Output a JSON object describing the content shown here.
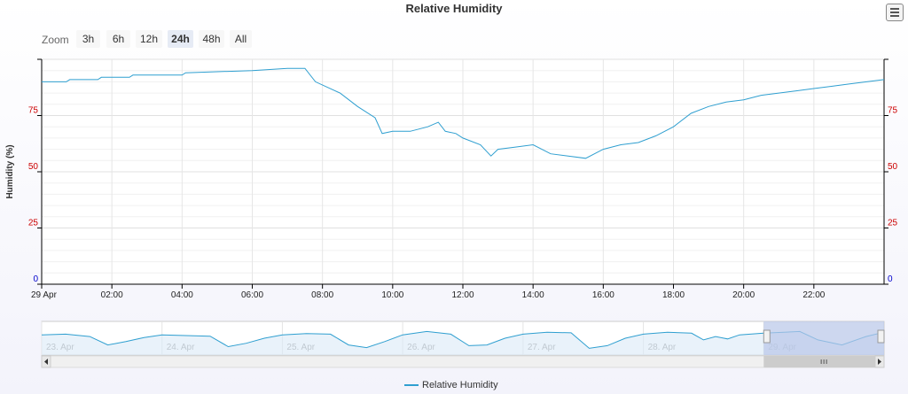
{
  "title": "Relative Humidity",
  "menu": {
    "icon": "hamburger-menu-icon"
  },
  "zoom": {
    "label": "Zoom",
    "buttons": [
      "3h",
      "6h",
      "12h",
      "24h",
      "48h",
      "All"
    ],
    "active": "24h"
  },
  "colors": {
    "series": "#2f9fd0",
    "navigator_fill": "#b8c6e8",
    "tick_red": "#cc0000",
    "tick_zero": "#0000cc"
  },
  "chart_data": {
    "type": "line",
    "title": "Relative Humidity",
    "ylabel": "Humidity (%)",
    "xlabel": "",
    "ylim": [
      0,
      100
    ],
    "y_ticks": [
      "0",
      "25",
      "50",
      "75"
    ],
    "x_tick_labels": [
      "29 Apr",
      "02:00",
      "04:00",
      "06:00",
      "08:00",
      "10:00",
      "12:00",
      "14:00",
      "16:00",
      "18:00",
      "20:00",
      "22:00"
    ],
    "x_tick_hours": [
      0,
      2,
      4,
      6,
      8,
      10,
      12,
      14,
      16,
      18,
      20,
      22
    ],
    "x_range_hours": [
      0,
      24
    ],
    "grid": true,
    "series": [
      {
        "name": "Relative Humidity",
        "x": [
          0,
          0.7,
          0.8,
          1.6,
          1.7,
          2.5,
          2.6,
          4.0,
          4.1,
          6.0,
          7.0,
          7.5,
          7.8,
          8.5,
          9.0,
          9.5,
          9.7,
          10.0,
          10.5,
          11.0,
          11.3,
          11.5,
          11.8,
          12.0,
          12.5,
          12.8,
          13.0,
          13.5,
          14.0,
          14.5,
          15.0,
          15.5,
          16.0,
          16.5,
          17.0,
          17.5,
          18.0,
          18.5,
          19.0,
          19.5,
          20.0,
          20.5,
          21.0,
          21.5,
          22.0,
          22.5,
          23.0,
          23.5,
          24.0
        ],
        "y": [
          90,
          90,
          91,
          91,
          92,
          92,
          93,
          93,
          94,
          95,
          96,
          96,
          90,
          85,
          79,
          74,
          67,
          68,
          68,
          70,
          72,
          68,
          67,
          65,
          62,
          57,
          60,
          61,
          62,
          58,
          57,
          56,
          60,
          62,
          63,
          66,
          70,
          76,
          79,
          81,
          82,
          84,
          85,
          86,
          87,
          88,
          89,
          90,
          91
        ]
      }
    ],
    "navigator": {
      "labels": [
        "23. Apr",
        "24. Apr",
        "25. Apr",
        "26. Apr",
        "27. Apr",
        "28. Apr",
        "29. Apr"
      ],
      "day_range": [
        0,
        7
      ],
      "selected_days": [
        6,
        7
      ],
      "x": [
        0,
        0.2,
        0.4,
        0.55,
        0.7,
        0.85,
        1.0,
        1.2,
        1.4,
        1.55,
        1.7,
        1.85,
        2.0,
        2.2,
        2.4,
        2.55,
        2.7,
        2.85,
        3.0,
        3.2,
        3.4,
        3.55,
        3.7,
        3.85,
        4.0,
        4.2,
        4.4,
        4.55,
        4.7,
        4.85,
        5.0,
        5.2,
        5.4,
        5.5,
        5.6,
        5.7,
        5.8,
        6.0,
        6.3,
        6.45,
        6.65,
        6.85,
        7.0
      ],
      "y": [
        60,
        62,
        55,
        30,
        40,
        52,
        60,
        58,
        56,
        25,
        35,
        50,
        60,
        64,
        62,
        30,
        22,
        40,
        60,
        70,
        62,
        28,
        30,
        50,
        62,
        68,
        66,
        20,
        28,
        50,
        62,
        68,
        65,
        45,
        55,
        48,
        60,
        65,
        70,
        45,
        30,
        55,
        68
      ]
    }
  },
  "legend": {
    "label": "Relative Humidity"
  }
}
